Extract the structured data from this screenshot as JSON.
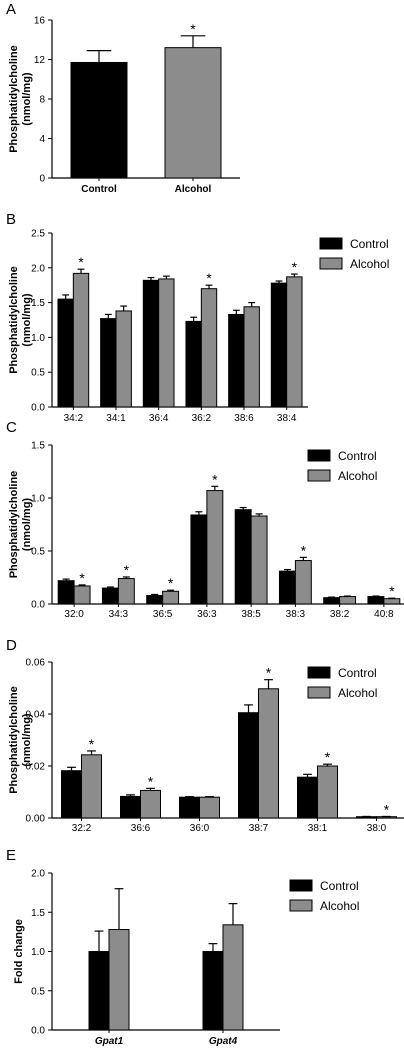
{
  "colors": {
    "control": "#000000",
    "alcohol": "#8c8c8c"
  },
  "chart_data": [
    {
      "panel": "A",
      "type": "bar",
      "ylabel": [
        "Phosphatidylcholine",
        "(nmol/mg)"
      ],
      "ylim": [
        0,
        16
      ],
      "yticks": [
        0,
        4,
        8,
        12,
        16
      ],
      "category_style": "bold",
      "legend": false,
      "categories": [
        "Control",
        "Alcohol"
      ],
      "series": [
        {
          "name": "Control",
          "values": [
            11.7,
            13.2
          ],
          "errors": [
            1.2,
            1.2
          ],
          "sig": [
            false,
            true
          ]
        }
      ],
      "point_colors": [
        "control",
        "alcohol"
      ]
    },
    {
      "panel": "B",
      "type": "bar",
      "ylabel": [
        "Phosphatidylcholine",
        "(nmol/mg)"
      ],
      "ylim": [
        0,
        2.5
      ],
      "yticks": [
        "0.0",
        "0.5",
        "1.0",
        "1.5",
        "2.0",
        "2.5"
      ],
      "category_style": "normal",
      "legend": true,
      "categories": [
        "34:2",
        "34:1",
        "36:4",
        "36:2",
        "38:6",
        "38:4"
      ],
      "series": [
        {
          "name": "Control",
          "values": [
            1.55,
            1.27,
            1.82,
            1.23,
            1.33,
            1.78
          ],
          "errors": [
            0.06,
            0.06,
            0.04,
            0.06,
            0.06,
            0.03
          ],
          "sig": [
            false,
            false,
            false,
            false,
            false,
            false
          ]
        },
        {
          "name": "Alcohol",
          "values": [
            1.92,
            1.38,
            1.84,
            1.7,
            1.44,
            1.87
          ],
          "errors": [
            0.06,
            0.07,
            0.04,
            0.05,
            0.06,
            0.04
          ],
          "sig": [
            true,
            false,
            false,
            true,
            false,
            true
          ]
        }
      ]
    },
    {
      "panel": "C",
      "type": "bar",
      "ylabel": [
        "Phosphatidylcholine",
        "(nmol/mg)"
      ],
      "ylim": [
        0,
        1.5
      ],
      "yticks": [
        "0.0",
        "0.5",
        "1.0",
        "1.5"
      ],
      "category_style": "normal",
      "legend": true,
      "categories": [
        "32:0",
        "34:3",
        "36:5",
        "36:3",
        "38:5",
        "38:3",
        "38:2",
        "40:8"
      ],
      "series": [
        {
          "name": "Control",
          "values": [
            0.22,
            0.15,
            0.08,
            0.84,
            0.89,
            0.31,
            0.06,
            0.07
          ],
          "errors": [
            0.015,
            0.01,
            0.01,
            0.03,
            0.02,
            0.015,
            0.005,
            0.005
          ],
          "sig": [
            false,
            false,
            false,
            false,
            false,
            false,
            false,
            false
          ]
        },
        {
          "name": "Alcohol",
          "values": [
            0.17,
            0.24,
            0.12,
            1.07,
            0.83,
            0.41,
            0.07,
            0.05
          ],
          "errors": [
            0.01,
            0.015,
            0.01,
            0.04,
            0.02,
            0.03,
            0.005,
            0.005
          ],
          "sig": [
            true,
            true,
            true,
            true,
            false,
            true,
            false,
            true
          ]
        }
      ]
    },
    {
      "panel": "D",
      "type": "bar",
      "ylabel": [
        "Phosphatidylcholine",
        "(nmol/mg)"
      ],
      "ylim": [
        0,
        0.06
      ],
      "yticks": [
        "0.00",
        "0.02",
        "0.04",
        "0.06"
      ],
      "category_style": "normal",
      "legend": true,
      "categories": [
        "32:2",
        "36:6",
        "36:0",
        "38:7",
        "38:1",
        "38:0"
      ],
      "series": [
        {
          "name": "Control",
          "values": [
            0.0182,
            0.0083,
            0.008,
            0.0405,
            0.0157,
            0.0005
          ],
          "errors": [
            0.0013,
            0.0006,
            0.0002,
            0.003,
            0.0011,
            0.0001
          ],
          "sig": [
            false,
            false,
            false,
            false,
            false,
            false
          ]
        },
        {
          "name": "Alcohol",
          "values": [
            0.0243,
            0.0106,
            0.008,
            0.0497,
            0.02,
            0.0005
          ],
          "errors": [
            0.0015,
            0.0008,
            0.0002,
            0.0035,
            0.0007,
            0.0001
          ],
          "sig": [
            true,
            true,
            false,
            true,
            true,
            true
          ]
        }
      ]
    },
    {
      "panel": "E",
      "type": "bar",
      "ylabel": [
        "Fold change"
      ],
      "ylim": [
        0,
        2.0
      ],
      "yticks": [
        "0.0",
        "0.5",
        "1.0",
        "1.5",
        "2.0"
      ],
      "category_style": "italic",
      "legend": true,
      "categories": [
        "Gpat1",
        "Gpat4"
      ],
      "series": [
        {
          "name": "Control",
          "values": [
            1.0,
            1.0
          ],
          "errors": [
            0.26,
            0.1
          ],
          "sig": [
            false,
            false
          ]
        },
        {
          "name": "Alcohol",
          "values": [
            1.28,
            1.34
          ],
          "errors": [
            0.52,
            0.27
          ],
          "sig": [
            false,
            false
          ]
        }
      ]
    }
  ]
}
